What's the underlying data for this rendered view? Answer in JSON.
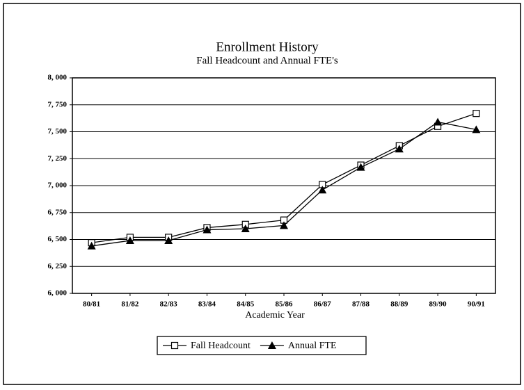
{
  "chart_data": {
    "type": "line",
    "title": "Enrollment History",
    "subtitle": "Fall Headcount and Annual FTE's",
    "x_label": "Academic Year",
    "categories": [
      "80/81",
      "81/82",
      "82/83",
      "83/84",
      "84/85",
      "85/86",
      "86/87",
      "87/88",
      "88/89",
      "89/90",
      "90/91"
    ],
    "series": [
      {
        "name": "Fall Headcount",
        "color": "#000000",
        "marker": "square",
        "values": [
          6470,
          6520,
          6520,
          6610,
          6640,
          6680,
          7010,
          7190,
          7370,
          7550,
          7670
        ]
      },
      {
        "name": "Annual FTE",
        "color": "#000000",
        "marker": "triangle",
        "values": [
          6440,
          6490,
          6490,
          6590,
          6600,
          6630,
          6960,
          7170,
          7340,
          7590,
          7520
        ]
      }
    ],
    "ylim": [
      6000,
      8000
    ],
    "yticks": [
      {
        "value": 6000,
        "label": "6, 000"
      },
      {
        "value": 6250,
        "label": "6, 250"
      },
      {
        "value": 6500,
        "label": "6, 500"
      },
      {
        "value": 6750,
        "label": "6, 750"
      },
      {
        "value": 7000,
        "label": "7, 000"
      },
      {
        "value": 7250,
        "label": "7, 250"
      },
      {
        "value": 7500,
        "label": "7, 500"
      },
      {
        "value": 7750,
        "label": "7, 750"
      },
      {
        "value": 8000,
        "label": "8, 000"
      }
    ],
    "grid": true,
    "legend": "bottom"
  }
}
